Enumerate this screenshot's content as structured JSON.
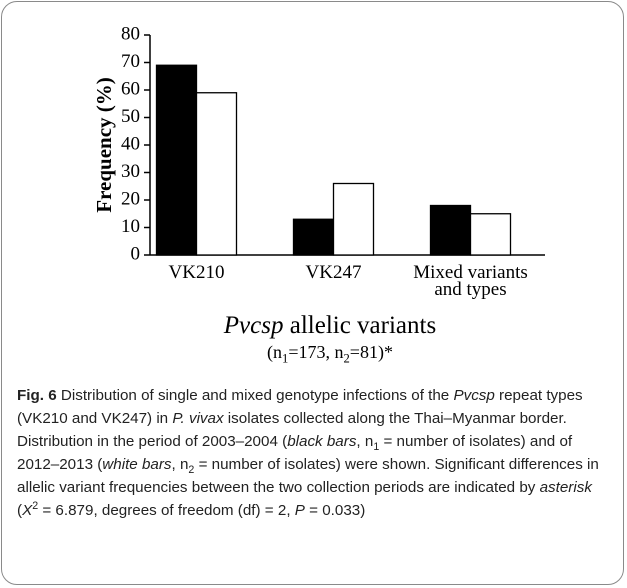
{
  "chart_data": {
    "type": "bar",
    "y_label": "Frequency (%)",
    "x_label": [
      {
        "text": "Pvcsp",
        "style": "italic"
      },
      {
        "text": " allelic variants"
      }
    ],
    "x_sublabel": [
      {
        "text": "(n"
      },
      {
        "text": "1",
        "style": "sub"
      },
      {
        "text": "=173, n"
      },
      {
        "text": "2",
        "style": "sub"
      },
      {
        "text": "=81)*"
      }
    ],
    "categories": [
      "VK210",
      "VK247",
      "Mixed variants and types"
    ],
    "series": [
      {
        "color": "#000000",
        "values": [
          69,
          13,
          18
        ]
      },
      {
        "color": "#ffffff",
        "values": [
          59,
          26,
          15
        ]
      }
    ],
    "ylim": [
      0,
      80
    ],
    "yticks": [
      0,
      10,
      20,
      30,
      40,
      50,
      60,
      70,
      80
    ],
    "grid": false
  },
  "caption": [
    {
      "text": "Fig. 6",
      "style": "bold"
    },
    {
      "text": "  Distribution of single and mixed genotype infections of the "
    },
    {
      "text": "Pvcsp",
      "style": "italic"
    },
    {
      "text": " repeat types (VK210 and VK247) in "
    },
    {
      "text": "P. vivax",
      "style": "italic"
    },
    {
      "text": " isolates collected along the Thai–Myanmar border. Distribution in the period of 2003–2004 ("
    },
    {
      "text": "black bars",
      "style": "italic"
    },
    {
      "text": ", n"
    },
    {
      "text": "1",
      "style": "sub"
    },
    {
      "text": " = number of isolates) and of 2012–2013 ("
    },
    {
      "text": "white bars",
      "style": "italic"
    },
    {
      "text": ", n"
    },
    {
      "text": "2",
      "style": "sub"
    },
    {
      "text": " = number of isolates) were shown. Significant differences in allelic variant frequencies between the two collection periods are indicated by "
    },
    {
      "text": "asterisk",
      "style": "italic"
    },
    {
      "text": " ("
    },
    {
      "text": "X",
      "style": "italic"
    },
    {
      "text": "2",
      "style": "sup"
    },
    {
      "text": " = 6.879, degrees of freedom (df) = 2, "
    },
    {
      "text": "P",
      "style": "italic"
    },
    {
      "text": " = 0.033)"
    }
  ]
}
